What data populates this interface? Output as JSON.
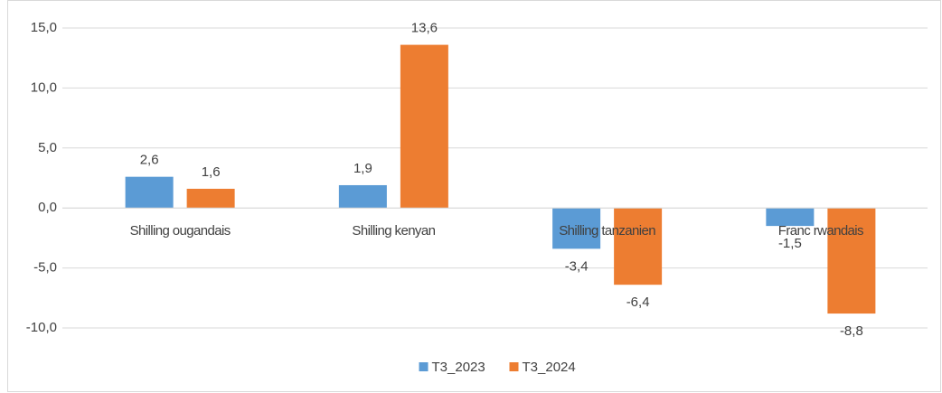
{
  "chart_data": {
    "type": "bar",
    "categories": [
      "Shilling ougandais",
      "Shilling kenyan",
      "Shilling tanzanien",
      "Franc rwandais"
    ],
    "series": [
      {
        "name": "T3_2023",
        "color": "#5b9bd5",
        "values": [
          2.6,
          1.9,
          -3.4,
          -1.5
        ],
        "value_labels": [
          "2,6",
          "1,9",
          "-3,4",
          "-1,5"
        ]
      },
      {
        "name": "T3_2024",
        "color": "#ed7d31",
        "values": [
          1.6,
          13.6,
          -6.4,
          -8.8
        ],
        "value_labels": [
          "1,6",
          "13,6",
          "-6,4",
          "-8,8"
        ]
      }
    ],
    "ylim": [
      -10,
      15
    ],
    "yticks": [
      {
        "value": -10,
        "label": "-10,0"
      },
      {
        "value": -5,
        "label": "-5,0"
      },
      {
        "value": 0,
        "label": "0,0"
      },
      {
        "value": 5,
        "label": "5,0"
      },
      {
        "value": 10,
        "label": "10,0"
      },
      {
        "value": 15,
        "label": "15,0"
      }
    ],
    "grid": true,
    "legend": "bottom"
  }
}
